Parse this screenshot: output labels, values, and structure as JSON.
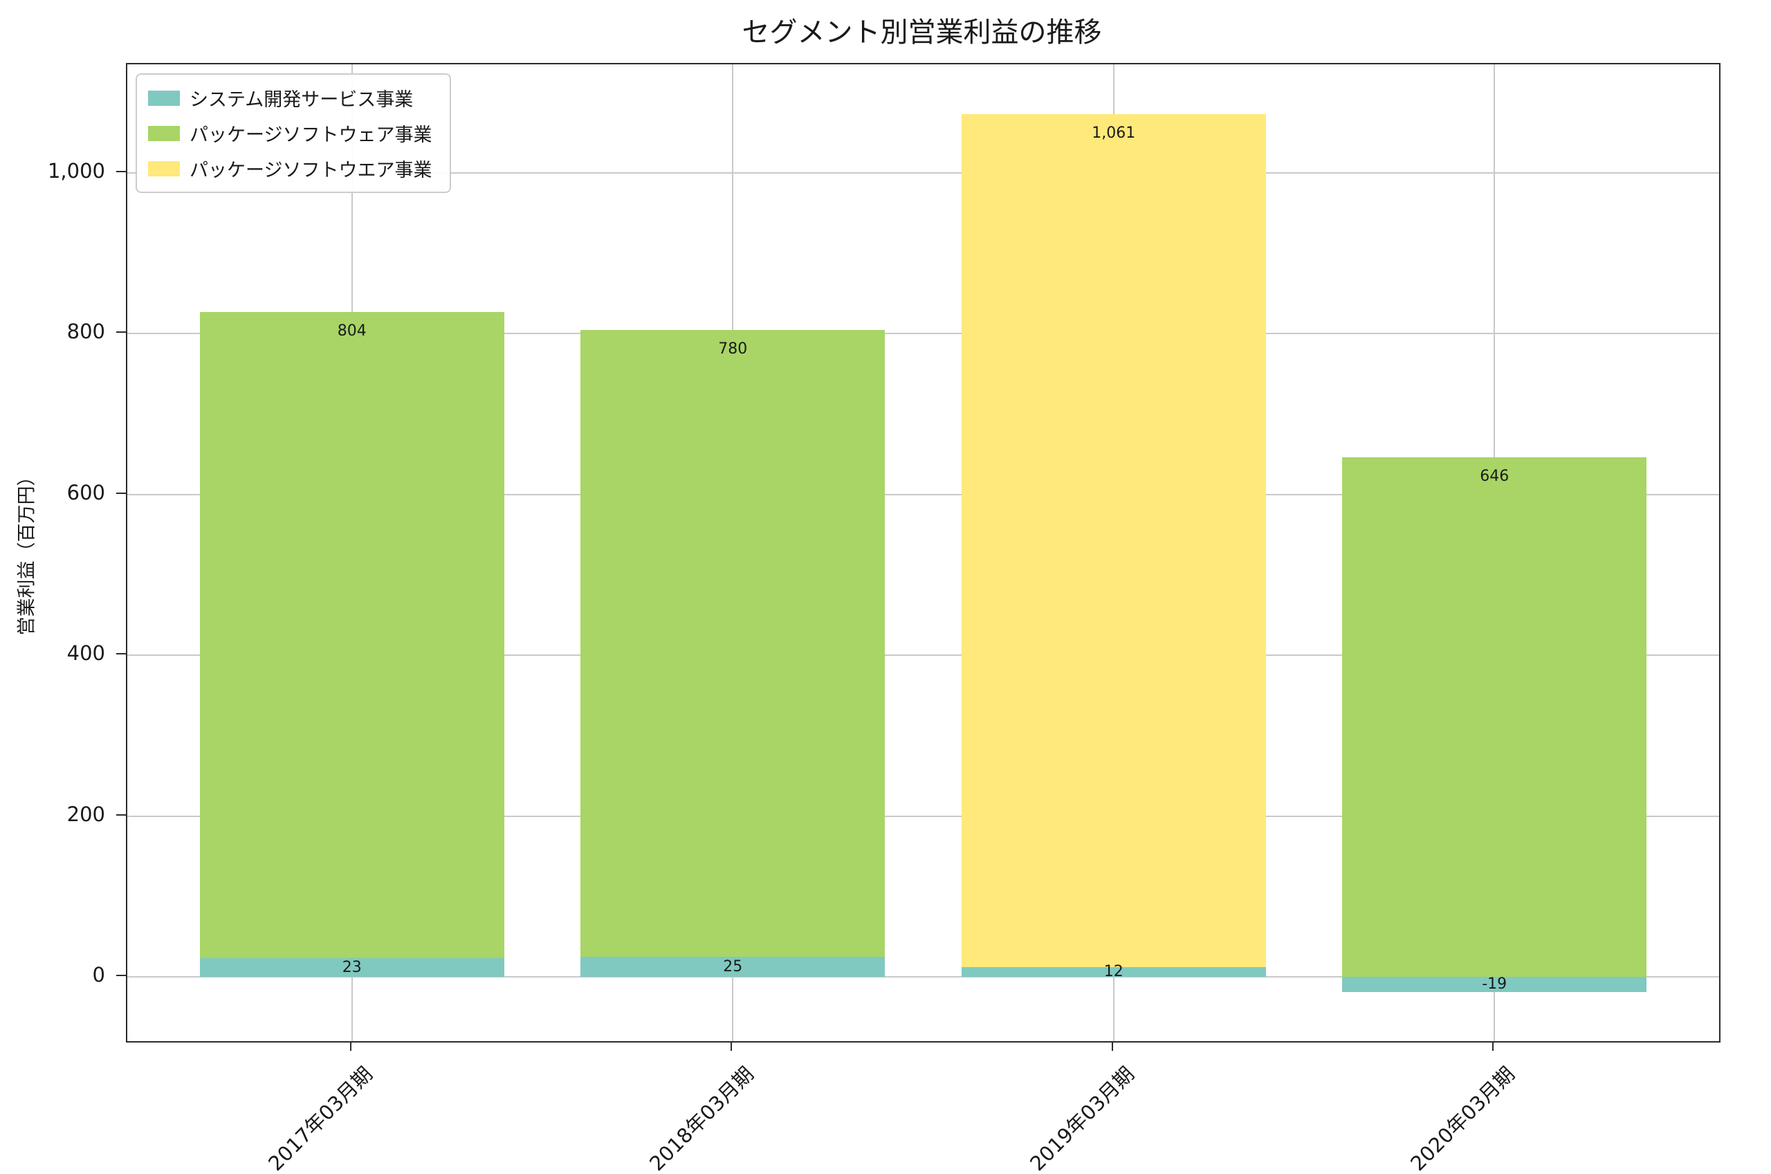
{
  "chart_data": {
    "type": "bar",
    "stacked": true,
    "title": "セグメント別営業利益の推移",
    "ylabel": "営業利益（百万円）",
    "categories": [
      "2017年03月期",
      "2018年03月期",
      "2019年03月期",
      "2020年03月期"
    ],
    "series": [
      {
        "name": "システム開発サービス事業",
        "color": "#7fc9c0",
        "values": [
          23,
          25,
          12,
          -19
        ]
      },
      {
        "name": "パッケージソフトウェア事業",
        "color": "#a8d566",
        "values": [
          804,
          780,
          null,
          646
        ]
      },
      {
        "name": "パッケージソフトウエア事業",
        "color": "#ffe97a",
        "values": [
          null,
          null,
          1061,
          null
        ]
      }
    ],
    "yticks": [
      0,
      200,
      400,
      600,
      800,
      1000
    ],
    "ylim": [
      -80,
      1135
    ],
    "grid": true,
    "legend_position": "upper left",
    "grid_color": "#c9c9c9",
    "axis_color": "#2b2b2b",
    "background": "#ffffff"
  }
}
